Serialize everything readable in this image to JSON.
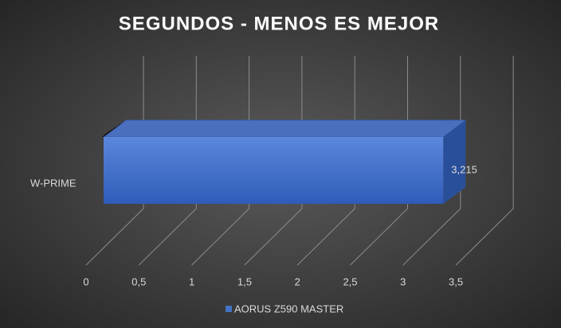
{
  "chart_data": {
    "type": "bar3d",
    "title": "SEGUNDOS - MENOS ES MEJOR",
    "categories": [
      "W-PRIME"
    ],
    "series": [
      {
        "name": "AORUS Z590 MASTER",
        "color": "#4472c4",
        "values": [
          3.215
        ],
        "value_labels": [
          "3,215"
        ]
      }
    ],
    "xlim": [
      0,
      3.5
    ],
    "xticks": [
      0,
      {
        "value": 0.5,
        "label": "0,5"
      },
      1,
      {
        "value": 1.5,
        "label": "1,5"
      },
      2,
      {
        "value": 2.5,
        "label": "2,5"
      },
      3,
      {
        "value": 3.5,
        "label": "3,5"
      }
    ],
    "grid": true,
    "legend": "bottom"
  }
}
